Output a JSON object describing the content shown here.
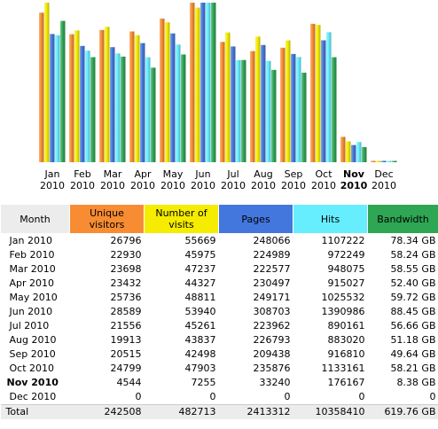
{
  "colors": {
    "unique": "#f78c33",
    "visits": "#f5ec00",
    "pages": "#4477dd",
    "hits": "#66eeff",
    "bandwidth": "#2ea654",
    "month_header": "#ececec"
  },
  "chart_data": {
    "type": "bar",
    "categories": [
      "Jan 2010",
      "Feb 2010",
      "Mar 2010",
      "Apr 2010",
      "May 2010",
      "Jun 2010",
      "Jul 2010",
      "Aug 2010",
      "Sep 2010",
      "Oct 2010",
      "Nov 2010",
      "Dec 2010"
    ],
    "category_labels": [
      {
        "m": "Jan",
        "y": "2010"
      },
      {
        "m": "Feb",
        "y": "2010"
      },
      {
        "m": "Mar",
        "y": "2010"
      },
      {
        "m": "Apr",
        "y": "2010"
      },
      {
        "m": "May",
        "y": "2010"
      },
      {
        "m": "Jun",
        "y": "2010"
      },
      {
        "m": "Jul",
        "y": "2010"
      },
      {
        "m": "Aug",
        "y": "2010"
      },
      {
        "m": "Sep",
        "y": "2010"
      },
      {
        "m": "Oct",
        "y": "2010"
      },
      {
        "m": "Nov",
        "y": "2010"
      },
      {
        "m": "Dec",
        "y": "2010"
      }
    ],
    "highlight_category": "Nov 2010",
    "series": [
      {
        "key": "unique",
        "color": "#f78c33",
        "values": [
          26796,
          22930,
          23698,
          23432,
          25736,
          28589,
          21556,
          19913,
          20515,
          24799,
          4544,
          0
        ]
      },
      {
        "key": "visits",
        "color": "#f5ec00",
        "values": [
          55669,
          45975,
          47237,
          44327,
          48811,
          53940,
          45261,
          43837,
          42498,
          47903,
          7255,
          0
        ]
      },
      {
        "key": "pages",
        "color": "#4477dd",
        "values": [
          248066,
          224989,
          222577,
          230497,
          249171,
          308703,
          223962,
          226793,
          209438,
          235876,
          33240,
          0
        ]
      },
      {
        "key": "hits",
        "color": "#66eeff",
        "values": [
          1107222,
          972249,
          948075,
          915027,
          1025532,
          1390986,
          890161,
          883020,
          916810,
          1133161,
          176167,
          0
        ]
      },
      {
        "key": "bandwidth",
        "color": "#2ea654",
        "values": [
          78.34,
          58.24,
          58.55,
          52.4,
          59.72,
          88.45,
          56.66,
          51.18,
          49.64,
          58.21,
          8.38,
          0
        ]
      }
    ]
  },
  "table": {
    "headers": {
      "month": "Month",
      "unique": "Unique visitors",
      "visits": "Number of visits",
      "pages": "Pages",
      "hits": "Hits",
      "bandwidth": "Bandwidth"
    },
    "rows": [
      {
        "month": "Jan 2010",
        "unique": "26796",
        "visits": "55669",
        "pages": "248066",
        "hits": "1107222",
        "bandwidth": "78.34 GB"
      },
      {
        "month": "Feb 2010",
        "unique": "22930",
        "visits": "45975",
        "pages": "224989",
        "hits": "972249",
        "bandwidth": "58.24 GB"
      },
      {
        "month": "Mar 2010",
        "unique": "23698",
        "visits": "47237",
        "pages": "222577",
        "hits": "948075",
        "bandwidth": "58.55 GB"
      },
      {
        "month": "Apr 2010",
        "unique": "23432",
        "visits": "44327",
        "pages": "230497",
        "hits": "915027",
        "bandwidth": "52.40 GB"
      },
      {
        "month": "May 2010",
        "unique": "25736",
        "visits": "48811",
        "pages": "249171",
        "hits": "1025532",
        "bandwidth": "59.72 GB"
      },
      {
        "month": "Jun 2010",
        "unique": "28589",
        "visits": "53940",
        "pages": "308703",
        "hits": "1390986",
        "bandwidth": "88.45 GB"
      },
      {
        "month": "Jul 2010",
        "unique": "21556",
        "visits": "45261",
        "pages": "223962",
        "hits": "890161",
        "bandwidth": "56.66 GB"
      },
      {
        "month": "Aug 2010",
        "unique": "19913",
        "visits": "43837",
        "pages": "226793",
        "hits": "883020",
        "bandwidth": "51.18 GB"
      },
      {
        "month": "Sep 2010",
        "unique": "20515",
        "visits": "42498",
        "pages": "209438",
        "hits": "916810",
        "bandwidth": "49.64 GB"
      },
      {
        "month": "Oct 2010",
        "unique": "24799",
        "visits": "47903",
        "pages": "235876",
        "hits": "1133161",
        "bandwidth": "58.21 GB"
      },
      {
        "month": "Nov 2010",
        "unique": "4544",
        "visits": "7255",
        "pages": "33240",
        "hits": "176167",
        "bandwidth": "8.38 GB",
        "current": true
      },
      {
        "month": "Dec 2010",
        "unique": "0",
        "visits": "0",
        "pages": "0",
        "hits": "0",
        "bandwidth": "0"
      }
    ],
    "total": {
      "month": "Total",
      "unique": "242508",
      "visits": "482713",
      "pages": "2413312",
      "hits": "10358410",
      "bandwidth": "619.76 GB"
    }
  }
}
